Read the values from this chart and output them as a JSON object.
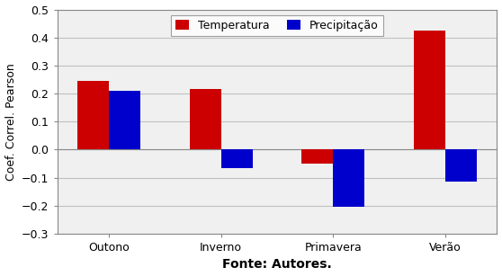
{
  "categories": [
    "Outono",
    "Inverno",
    "Primavera",
    "Verão"
  ],
  "temperatura": [
    0.245,
    0.215,
    -0.05,
    0.425
  ],
  "precipitacao": [
    0.21,
    -0.065,
    -0.205,
    -0.115
  ],
  "bar_color_temp": "#CC0000",
  "bar_color_prec": "#0000CC",
  "ylabel": "Coef. Correl. Pearson",
  "xlabel": "Fonte: Autores.",
  "legend_labels": [
    "Temperatura",
    "Precipitação"
  ],
  "ylim": [
    -0.3,
    0.5
  ],
  "yticks": [
    -0.3,
    -0.2,
    -0.1,
    0.0,
    0.1,
    0.2,
    0.3,
    0.4,
    0.5
  ],
  "bar_width": 0.28,
  "plot_bg_color": "#F0F0F0",
  "fig_bg_color": "#FFFFFF",
  "grid_color": "#C0C0C0"
}
